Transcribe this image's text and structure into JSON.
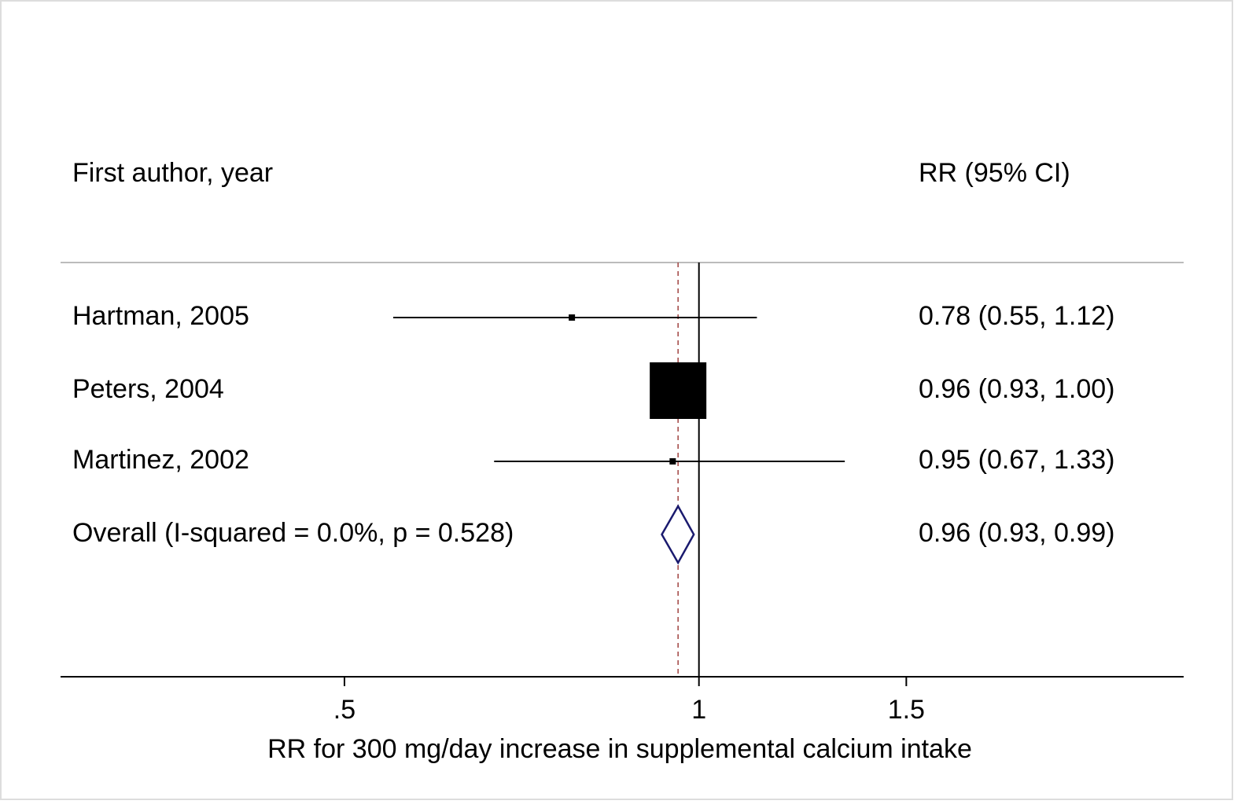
{
  "chart_data": {
    "type": "forest",
    "column_headers": [
      "First author, year",
      "RR (95% CI)"
    ],
    "categories": [
      "Hartman, 2005",
      "Peters, 2004",
      "Martinez, 2002"
    ],
    "values": [
      0.78,
      0.96,
      0.95
    ],
    "lower": [
      0.55,
      0.93,
      0.67
    ],
    "upper": [
      1.12,
      1.0,
      1.33
    ],
    "weights": [
      1.2,
      97.6,
      1.2
    ],
    "value_labels": [
      "0.78 (0.55, 1.12)",
      "0.96 (0.93, 1.00)",
      "0.95 (0.67, 1.33)"
    ],
    "color": "#000000",
    "overall": {
      "label": "Overall  (I-squared = 0.0%, p = 0.528)",
      "value": 0.96,
      "lower": 0.93,
      "upper": 0.99,
      "value_label": "0.96 (0.93, 0.99)",
      "color": "#1a1a6e",
      "line_color": "#a0423f"
    },
    "ref_line": 1,
    "x_scale": "log",
    "xlim": [
      0.287,
      2.58
    ],
    "xticks": [
      {
        "value": 0.5,
        "label": ".5"
      },
      1,
      1.5
    ],
    "xlabel": "RR for 300 mg/day increase in supplemental calcium intake"
  }
}
